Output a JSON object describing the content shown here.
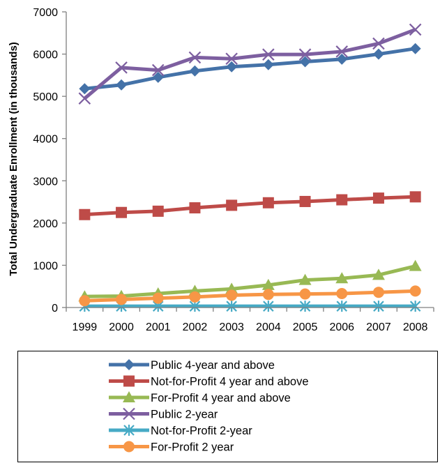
{
  "chart_data": {
    "type": "line",
    "title": "",
    "xlabel": "",
    "ylabel": "Total Undergraduate Enrollment (in thousands)",
    "categories": [
      "1999",
      "2000",
      "2001",
      "2002",
      "2003",
      "2004",
      "2005",
      "2006",
      "2007",
      "2008"
    ],
    "yticks": [
      "0",
      "1000",
      "2000",
      "3000",
      "4000",
      "5000",
      "6000",
      "7000"
    ],
    "ylim": [
      0,
      7000
    ],
    "grid": false,
    "legend_position": "bottom",
    "series": [
      {
        "name": "Public 4-year and above",
        "color": "#4472a8",
        "marker": "diamond",
        "values": [
          5180,
          5270,
          5450,
          5600,
          5700,
          5750,
          5820,
          5880,
          6000,
          6130
        ]
      },
      {
        "name": "Not-for-Profit 4 year and above",
        "color": "#be4b48",
        "marker": "square",
        "values": [
          2200,
          2250,
          2280,
          2360,
          2420,
          2480,
          2510,
          2550,
          2590,
          2620
        ]
      },
      {
        "name": "For-Profit 4 year and above",
        "color": "#98b954",
        "marker": "triangle",
        "values": [
          260,
          270,
          330,
          390,
          440,
          530,
          650,
          690,
          770,
          980
        ]
      },
      {
        "name": "Public 2-year",
        "color": "#7d5fa0",
        "marker": "x",
        "values": [
          4950,
          5680,
          5620,
          5920,
          5890,
          5990,
          5990,
          6060,
          6250,
          6580
        ]
      },
      {
        "name": "Not-for-Profit 2-year",
        "color": "#46aac5",
        "marker": "star",
        "values": [
          30,
          30,
          30,
          30,
          30,
          30,
          30,
          30,
          30,
          30
        ]
      },
      {
        "name": "For-Profit 2 year",
        "color": "#f79646",
        "marker": "circle",
        "values": [
          160,
          190,
          220,
          250,
          290,
          310,
          320,
          330,
          360,
          390
        ]
      }
    ]
  }
}
